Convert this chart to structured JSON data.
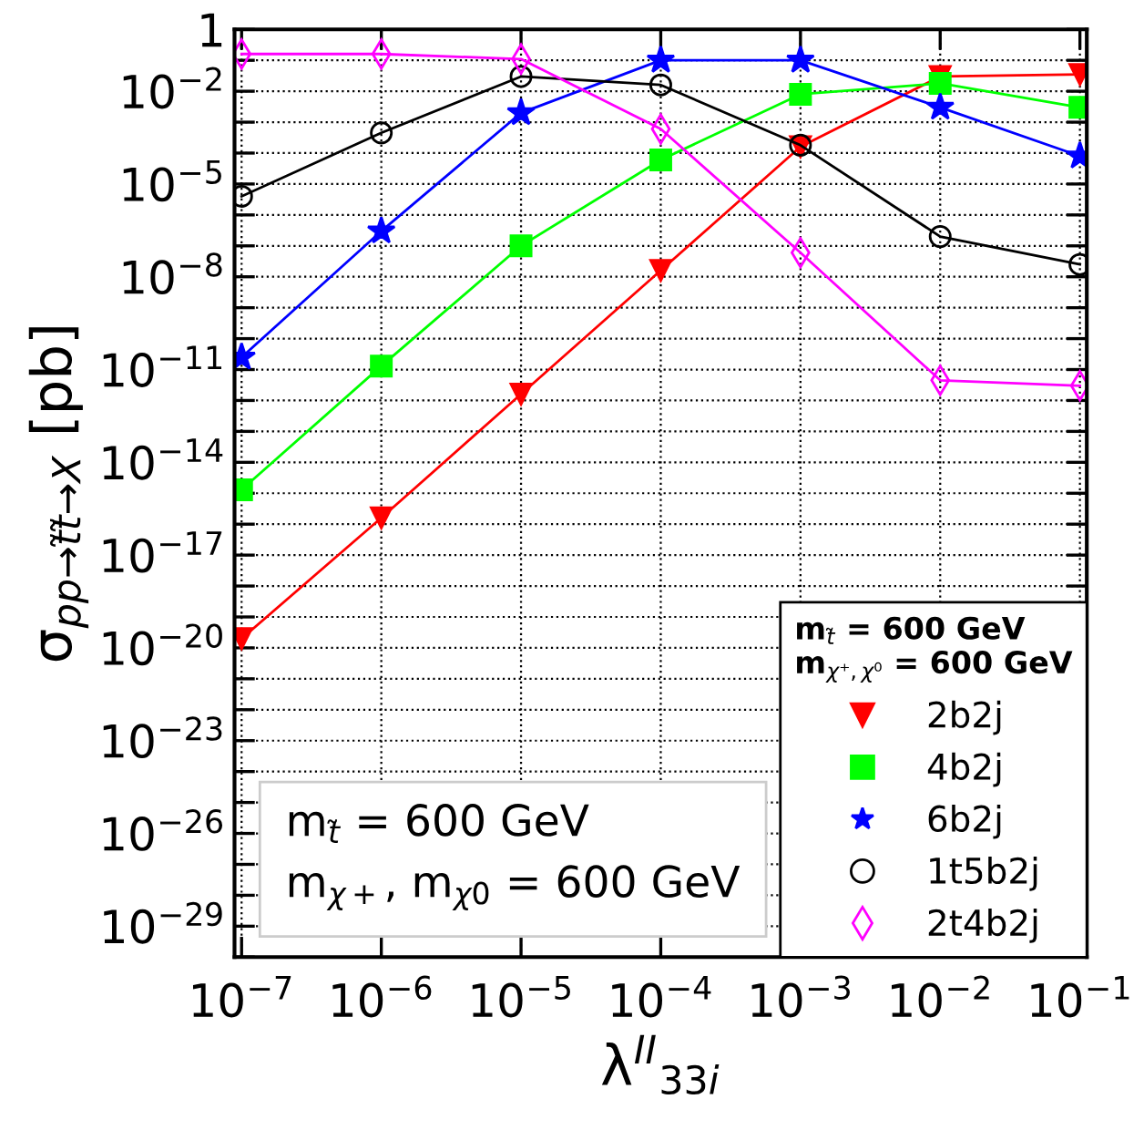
{
  "chart_data": {
    "type": "line",
    "xlabel": "λ$^{II}$$_{33i}$",
    "ylabel": "σ$_{pp→t̃t̃→X}$ [pb]",
    "log": "xy",
    "grid": true,
    "legend": "bottom right",
    "legend_title": "m$_{t̃}$ = 600 GeV\nm$_{χ⁺,χ⁰}$ = 600 GeV",
    "x": [
      1e-07,
      1e-06,
      1e-05,
      0.0001,
      0.001,
      0.01,
      0.1
    ],
    "xlim": [
      8.9e-08,
      0.112
    ],
    "xticks": [
      {
        "value": 1e-07,
        "label": "10$^{−7}$"
      },
      {
        "value": 1e-06,
        "label": "10$^{−6}$"
      },
      {
        "value": 1e-05,
        "label": "10$^{−5}$"
      },
      {
        "value": 0.0001,
        "label": "10$^{−4}$"
      },
      {
        "value": 0.001,
        "label": "10$^{−3}$"
      },
      {
        "value": 0.01,
        "label": "10$^{−2}$"
      },
      {
        "value": 0.1,
        "label": "10$^{−1}$"
      }
    ],
    "ylim": [
      1e-30,
      1
    ],
    "yticks": [
      {
        "value": 1e-30,
        "label": null
      },
      {
        "value": 1e-29,
        "label": "10$^{−29}$"
      },
      {
        "value": 1e-28,
        "label": null
      },
      {
        "value": 1e-27,
        "label": null
      },
      {
        "value": 1e-26,
        "label": "10$^{−26}$"
      },
      {
        "value": 1e-25,
        "label": null
      },
      {
        "value": 1e-24,
        "label": null
      },
      {
        "value": 1e-23,
        "label": "10$^{−23}$"
      },
      {
        "value": 1e-22,
        "label": null
      },
      {
        "value": 1e-21,
        "label": null
      },
      {
        "value": 1e-20,
        "label": "10$^{−20}$"
      },
      {
        "value": 1e-19,
        "label": null
      },
      {
        "value": 1e-18,
        "label": null
      },
      {
        "value": 1e-17,
        "label": "10$^{−17}$"
      },
      {
        "value": 1e-16,
        "label": null
      },
      {
        "value": 1e-15,
        "label": null
      },
      {
        "value": 1e-14,
        "label": "10$^{−14}$"
      },
      {
        "value": 1e-13,
        "label": null
      },
      {
        "value": 1e-12,
        "label": null
      },
      {
        "value": 1e-11,
        "label": "10$^{−11}$"
      },
      {
        "value": 1e-10,
        "label": null
      },
      {
        "value": 1e-09,
        "label": null
      },
      {
        "value": 1e-08,
        "label": "10$^{−8}$"
      },
      {
        "value": 1e-07,
        "label": null
      },
      {
        "value": 1e-06,
        "label": null
      },
      {
        "value": 1e-05,
        "label": "10$^{−5}$"
      },
      {
        "value": 0.0001,
        "label": null
      },
      {
        "value": 0.001,
        "label": null
      },
      {
        "value": 0.01,
        "label": "10$^{−2}$"
      },
      {
        "value": 0.1,
        "label": null
      },
      {
        "value": 1,
        "label": "1"
      }
    ],
    "series": [
      {
        "name": "2b2j",
        "color": "#ff0000",
        "marker": "triangle",
        "values": [
          2e-20,
          1.6e-16,
          1.6e-12,
          1.6e-08,
          0.00016,
          0.03,
          0.035
        ]
      },
      {
        "name": "4b2j",
        "color": "#00ff00",
        "marker": "square",
        "values": [
          1.3e-15,
          1.3e-11,
          1e-07,
          6e-05,
          0.008,
          0.018,
          0.003
        ]
      },
      {
        "name": "6b2j",
        "color": "#0000ff",
        "marker": "star",
        "values": [
          2.5e-11,
          3e-07,
          0.002,
          0.1,
          0.1,
          0.003,
          8e-05
        ]
      },
      {
        "name": "1t5b2j",
        "color": "#000000",
        "marker": "circle",
        "values": [
          4e-06,
          0.00045,
          0.03,
          0.016,
          0.00018,
          2e-07,
          2.5e-08
        ]
      },
      {
        "name": "2t4b2j",
        "color": "#ff00ff",
        "marker": "diamond",
        "values": [
          0.16,
          0.16,
          0.11,
          0.0006,
          6e-08,
          4.5e-12,
          3e-12
        ]
      }
    ],
    "annotations": [
      "m$_{t̃}$ = 600 GeV\nm$_{χ+}$, m$_{χ0}$ = 600 GeV"
    ]
  }
}
